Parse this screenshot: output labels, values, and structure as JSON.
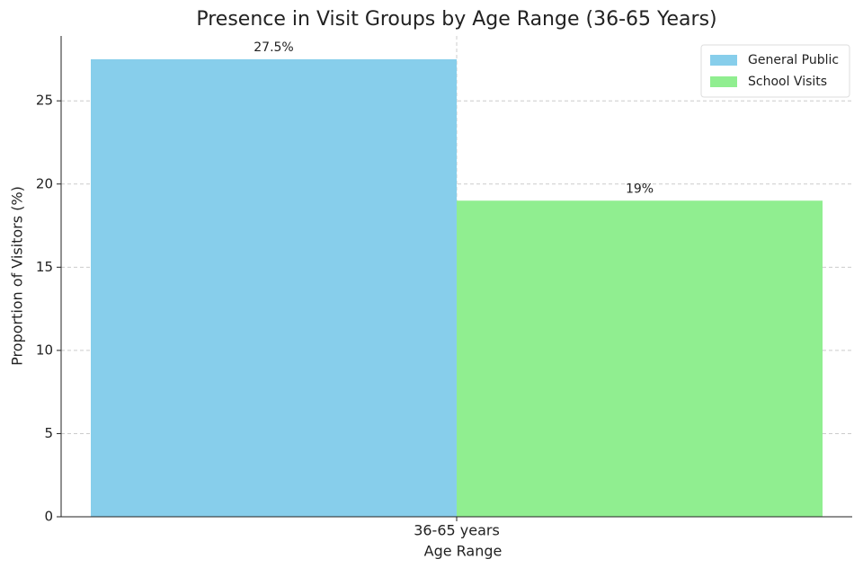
{
  "chart_data": {
    "type": "bar",
    "title": "Presence in Visit Groups by Age Range (36-65 Years)",
    "x_label": "Age Range",
    "y_label": "Proportion of Visitors (%)",
    "categories": [
      "36-65 years"
    ],
    "series": [
      {
        "name": "General Public",
        "color": "#87ceeb",
        "values": [
          27.5
        ],
        "value_labels": [
          "27.5%"
        ]
      },
      {
        "name": "School Visits",
        "color": "#90ee90",
        "values": [
          19
        ],
        "value_labels": [
          "19%"
        ]
      }
    ],
    "ylim": [
      0,
      28.9
    ],
    "yticks": [
      0,
      5,
      10,
      15,
      20,
      25
    ],
    "grid": true,
    "legend": "upper right"
  }
}
